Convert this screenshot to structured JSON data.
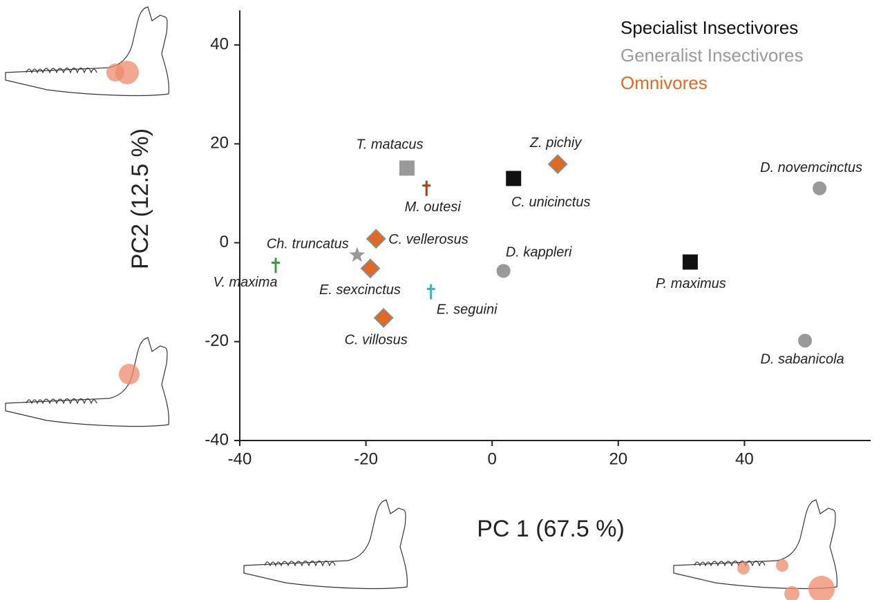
{
  "chart_data": {
    "type": "scatter",
    "x_label": "PC 1 (67.5 %)",
    "y_label": "PC2 (12.5 %)",
    "xlim": [
      -40,
      60
    ],
    "ylim": [
      -40,
      47
    ],
    "xticks": [
      -40,
      -20,
      0,
      20,
      40
    ],
    "yticks": [
      -40,
      -20,
      0,
      20,
      40
    ],
    "legend": [
      {
        "text": "Specialist Insectivores",
        "color": "#111111"
      },
      {
        "text": "Generalist Insectivores",
        "color": "#999999"
      },
      {
        "text": "Omnivores",
        "color": "#e06a23"
      }
    ],
    "points": [
      {
        "label": "T. matacus",
        "x": -13.5,
        "y": 15.1,
        "marker": "square",
        "color": "#999999"
      },
      {
        "label": "M. outesi",
        "x": -10.4,
        "y": 11.0,
        "marker": "dagger",
        "color": "#a0401f"
      },
      {
        "label": "C. unicinctus",
        "x": 3.4,
        "y": 13.0,
        "marker": "square",
        "color": "#111111"
      },
      {
        "label": "Z. pichiy",
        "x": 10.4,
        "y": 15.9,
        "marker": "diamond",
        "color": "#e06a23"
      },
      {
        "label": "D. novemcinctus",
        "x": 51.9,
        "y": 11.0,
        "marker": "circle",
        "color": "#999999"
      },
      {
        "label": "C. vellerosus",
        "x": -18.4,
        "y": 0.8,
        "marker": "diamond",
        "color": "#e06a23"
      },
      {
        "label": "Ch. truncatus",
        "x": -21.4,
        "y": -2.5,
        "marker": "star",
        "color": "#999999"
      },
      {
        "label": "E. sexcinctus",
        "x": -19.3,
        "y": -5.2,
        "marker": "diamond",
        "color": "#e06a23"
      },
      {
        "label": "V. maxima",
        "x": -34.3,
        "y": -4.6,
        "marker": "dagger",
        "color": "#3a9a3a"
      },
      {
        "label": "E. seguini",
        "x": -9.7,
        "y": -9.9,
        "marker": "dagger",
        "color": "#3ab5b5"
      },
      {
        "label": "C. villosus",
        "x": -17.2,
        "y": -15.2,
        "marker": "diamond",
        "color": "#e06a23"
      },
      {
        "label": "D. kappleri",
        "x": 1.8,
        "y": -5.7,
        "marker": "circle",
        "color": "#999999"
      },
      {
        "label": "P. maximus",
        "x": 31.4,
        "y": -3.9,
        "marker": "square",
        "color": "#111111"
      },
      {
        "label": "D. sabanicola",
        "x": 49.6,
        "y": -19.8,
        "marker": "circle",
        "color": "#999999"
      }
    ]
  }
}
